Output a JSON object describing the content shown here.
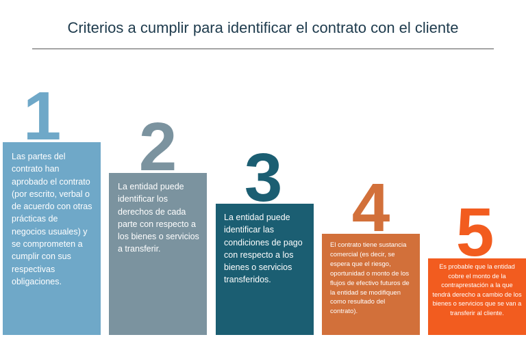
{
  "header": {
    "title": "Criterios a cumplir para identificar el contrato con el cliente"
  },
  "items": [
    {
      "number": "1",
      "text": "Las partes del contrato han aprobado el contrato (por escrito, verbal o de acuerdo con otras prácticas de negocios usuales) y se comprometen a cumplir con sus respectivas obligaciones."
    },
    {
      "number": "2",
      "text": "La entidad puede identificar los derechos de cada parte con respecto a los bienes o servicios a transferir."
    },
    {
      "number": "3",
      "text": "La entidad puede identificar las condiciones de pago con respecto a los bienes o servicios transferidos."
    },
    {
      "number": "4",
      "text": "El contrato tiene sustancia comercial (es decir, se espera que el riesgo, oportunidad o monto de los flujos de efectivo futuros de la entidad se modifiquen como resultado del contrato)."
    },
    {
      "number": "5",
      "text": "Es probable que la entidad cobre el monto de la contraprestación a la que tendrá derecho a cambio de los bienes o servicios que se van a transferir al cliente."
    }
  ]
}
